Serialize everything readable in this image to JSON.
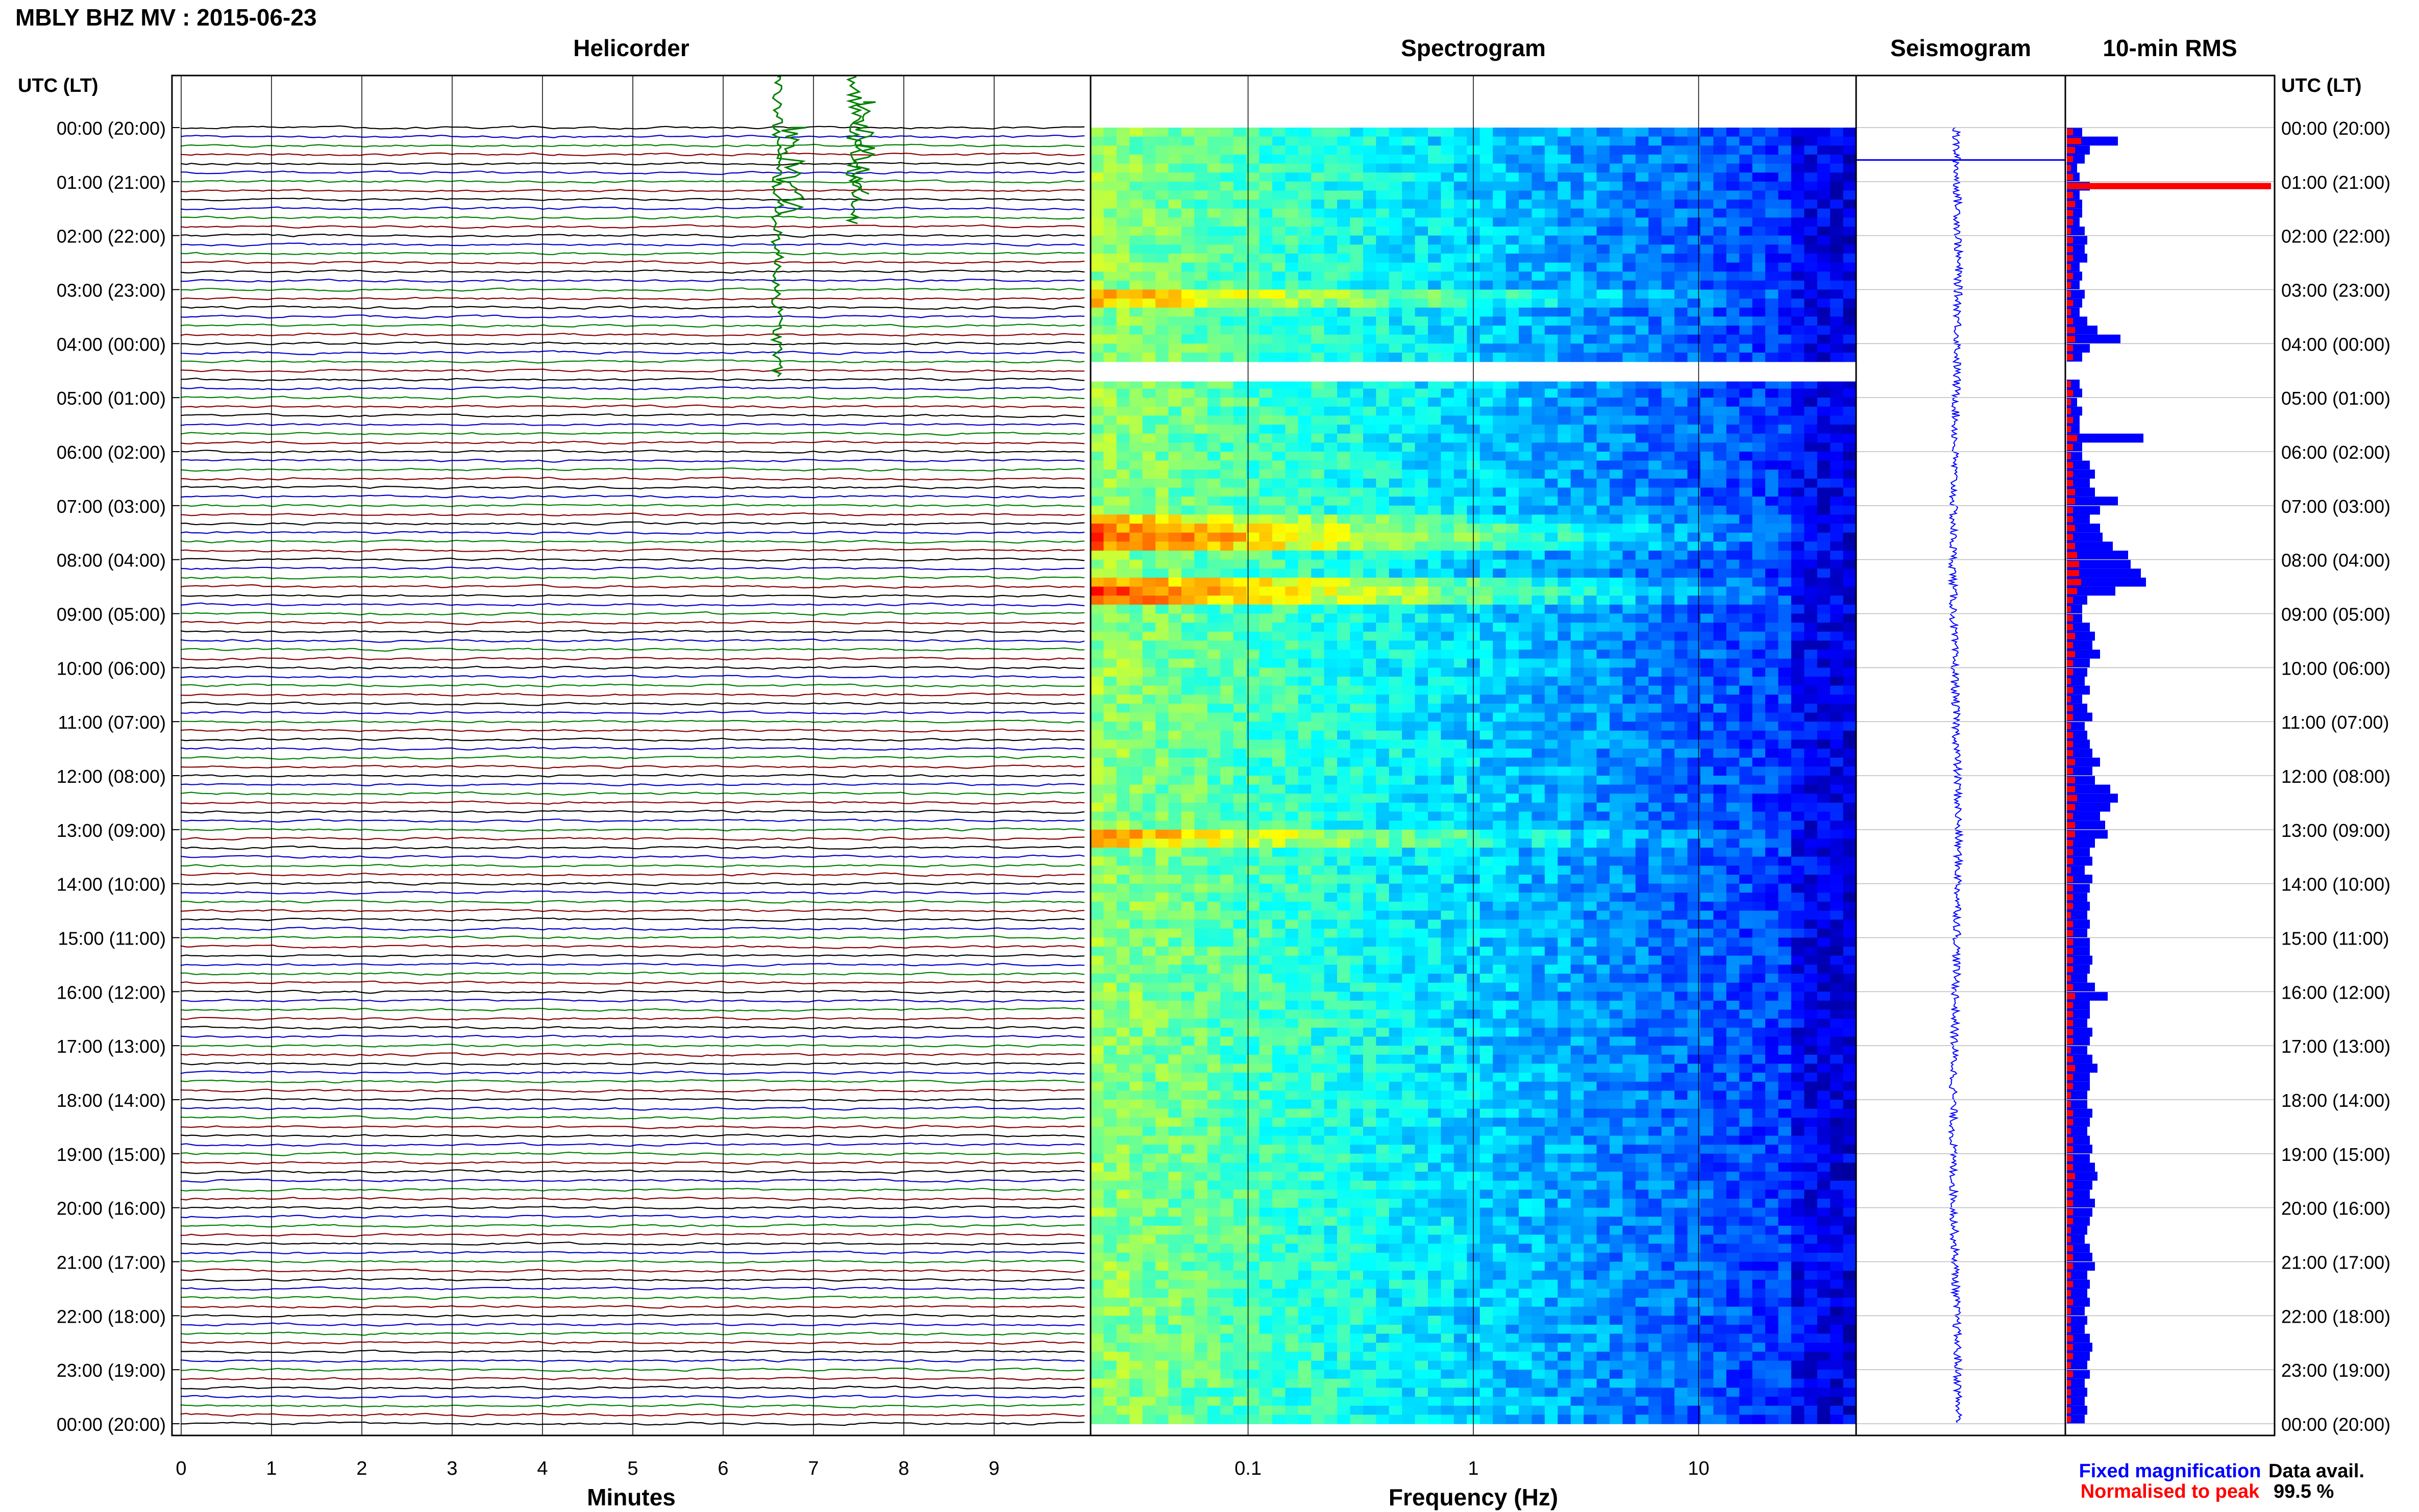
{
  "title": "MBLY BHZ MV : 2015-06-23",
  "time_axis_header_left": "UTC (LT)",
  "time_axis_header_right": "UTC (LT)",
  "panels": {
    "helicorder": "Helicorder",
    "spectrogram": "Spectrogram",
    "seismogram": "Seismogram",
    "rms": "10-min RMS"
  },
  "time_labels": [
    "00:00 (20:00)",
    "01:00 (21:00)",
    "02:00 (22:00)",
    "03:00 (23:00)",
    "04:00 (00:00)",
    "05:00 (01:00)",
    "06:00 (02:00)",
    "07:00 (03:00)",
    "08:00 (04:00)",
    "09:00 (05:00)",
    "10:00 (06:00)",
    "11:00 (07:00)",
    "12:00 (08:00)",
    "13:00 (09:00)",
    "14:00 (10:00)",
    "15:00 (11:00)",
    "16:00 (12:00)",
    "17:00 (13:00)",
    "18:00 (14:00)",
    "19:00 (15:00)",
    "20:00 (16:00)",
    "21:00 (17:00)",
    "22:00 (18:00)",
    "23:00 (19:00)",
    "00:00 (20:00)"
  ],
  "helicorder_x_label": "Minutes",
  "helicorder_x_ticks": [
    "0",
    "1",
    "2",
    "3",
    "4",
    "5",
    "6",
    "7",
    "8",
    "9"
  ],
  "spectrogram_x_label": "Frequency (Hz)",
  "spectrogram_x_ticks": [
    "0.1",
    "1",
    "10"
  ],
  "rms_legend": {
    "fixed": "Fixed magnification",
    "normalised": "Normalised to peak",
    "fixed_color": "#0000ff",
    "normalised_color": "#ff0000"
  },
  "data_availability_label": "Data avail.",
  "data_availability_value": "99.5 %",
  "trace_colors": [
    "#000000",
    "#0000cc",
    "#008000",
    "#8b0000"
  ],
  "chart_data": {
    "type": "heatmap",
    "title": "MBLY BHZ MV : 2015-06-23",
    "time_range_hours": [
      0,
      24
    ],
    "helicorder": {
      "x_range_minutes": [
        0,
        10
      ],
      "rows_per_hour": 6
    },
    "spectrogram": {
      "x_range_hz": [
        0.02,
        50
      ],
      "x_scale": "log",
      "colormap": "jet"
    },
    "rms_10min": {
      "fixed_magnification": [
        0.06,
        0.2,
        0.09,
        0.07,
        0.04,
        0.05,
        0.09,
        0.05,
        0.06,
        0.06,
        0.05,
        0.07,
        0.08,
        0.07,
        0.08,
        0.05,
        0.06,
        0.05,
        0.07,
        0.06,
        0.05,
        0.08,
        0.12,
        0.21,
        0.09,
        0.06,
        0.0,
        0.0,
        0.05,
        0.06,
        0.04,
        0.06,
        0.05,
        0.05,
        0.3,
        0.06,
        0.06,
        0.09,
        0.11,
        0.09,
        0.11,
        0.2,
        0.13,
        0.09,
        0.13,
        0.14,
        0.18,
        0.24,
        0.25,
        0.29,
        0.31,
        0.19,
        0.08,
        0.06,
        0.06,
        0.09,
        0.11,
        0.1,
        0.13,
        0.09,
        0.08,
        0.07,
        0.09,
        0.06,
        0.08,
        0.1,
        0.07,
        0.08,
        0.09,
        0.1,
        0.13,
        0.1,
        0.11,
        0.17,
        0.2,
        0.17,
        0.13,
        0.15,
        0.16,
        0.11,
        0.09,
        0.1,
        0.07,
        0.1,
        0.09,
        0.08,
        0.09,
        0.08,
        0.09,
        0.08,
        0.09,
        0.09,
        0.1,
        0.09,
        0.08,
        0.11,
        0.16,
        0.09,
        0.09,
        0.08,
        0.1,
        0.09,
        0.08,
        0.1,
        0.12,
        0.09,
        0.09,
        0.08,
        0.08,
        0.1,
        0.09,
        0.08,
        0.09,
        0.1,
        0.09,
        0.11,
        0.12,
        0.1,
        0.09,
        0.11,
        0.1,
        0.09,
        0.08,
        0.07,
        0.09,
        0.1,
        0.11,
        0.08,
        0.09,
        0.08,
        0.09,
        0.07,
        0.08,
        0.07,
        0.09,
        0.1,
        0.09,
        0.08,
        0.09,
        0.07,
        0.08,
        0.07,
        0.08,
        0.07
      ],
      "normalised_to_peak": [
        0.03,
        0.07,
        0.04,
        0.03,
        0.02,
        0.03,
        1.0,
        0.03,
        0.04,
        0.03,
        0.03,
        0.02,
        0.03,
        0.03,
        0.03,
        0.02,
        0.03,
        0.02,
        0.02,
        0.03,
        0.02,
        0.03,
        0.04,
        0.04,
        0.03,
        0.03,
        0.0,
        0.0,
        0.02,
        0.03,
        0.02,
        0.02,
        0.03,
        0.02,
        0.05,
        0.03,
        0.02,
        0.03,
        0.03,
        0.03,
        0.04,
        0.04,
        0.03,
        0.03,
        0.04,
        0.03,
        0.04,
        0.05,
        0.06,
        0.06,
        0.07,
        0.05,
        0.03,
        0.02,
        0.03,
        0.03,
        0.04,
        0.03,
        0.04,
        0.03,
        0.03,
        0.02,
        0.03,
        0.02,
        0.03,
        0.03,
        0.02,
        0.03,
        0.03,
        0.03,
        0.04,
        0.03,
        0.04,
        0.04,
        0.05,
        0.04,
        0.03,
        0.04,
        0.04,
        0.03,
        0.03,
        0.03,
        0.02,
        0.03,
        0.03,
        0.03,
        0.03,
        0.02,
        0.03,
        0.03,
        0.03,
        0.03,
        0.03,
        0.03,
        0.02,
        0.03,
        0.04,
        0.03,
        0.03,
        0.03,
        0.03,
        0.03,
        0.02,
        0.03,
        0.04,
        0.03,
        0.03,
        0.02,
        0.02,
        0.03,
        0.03,
        0.02,
        0.03,
        0.03,
        0.03,
        0.03,
        0.04,
        0.03,
        0.03,
        0.03,
        0.03,
        0.03,
        0.02,
        0.02,
        0.03,
        0.03,
        0.03,
        0.02,
        0.03,
        0.02,
        0.03,
        0.02,
        0.02,
        0.02,
        0.03,
        0.03,
        0.03,
        0.02,
        0.03,
        0.02,
        0.02,
        0.02,
        0.02,
        0.02
      ]
    },
    "data_availability_percent": 99.5
  }
}
